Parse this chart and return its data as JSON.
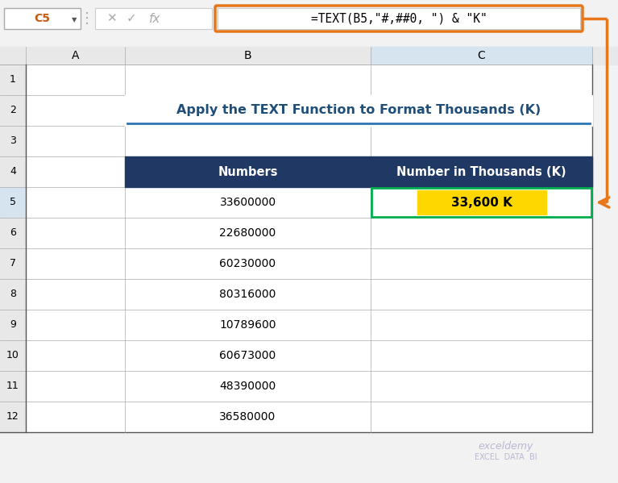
{
  "title": "Apply the TEXT Function to Format Thousands (K)",
  "title_color": "#1F4E79",
  "title_underline_color": "#2E75B6",
  "formula_text": "=TEXT(B5,\"#,##0, \") & \"K\"",
  "formula_box_color": "#E8761A",
  "header_bg": "#1F3864",
  "header_fg": "#FFFFFF",
  "col_headers": [
    "Numbers",
    "Number in Thousands (K)"
  ],
  "numbers": [
    "33600000",
    "22680000",
    "60230000",
    "80316000",
    "10789600",
    "60673000",
    "48390000",
    "36580000"
  ],
  "highlighted_cell": "33,600 K",
  "highlight_bg": "#FFD700",
  "highlight_fg": "#000000",
  "cell_name": "C5",
  "col_A_label": "A",
  "col_B_label": "B",
  "col_C_label": "C",
  "row_labels": [
    "1",
    "2",
    "3",
    "4",
    "5",
    "6",
    "7",
    "8",
    "9",
    "10",
    "11",
    "12"
  ],
  "bg_color": "#F2F2F2",
  "arrow_color": "#E8761A",
  "selected_border": "#00B050",
  "watermark_line1": "exceldemy",
  "watermark_line2": "EXCEL  DATA  BI"
}
